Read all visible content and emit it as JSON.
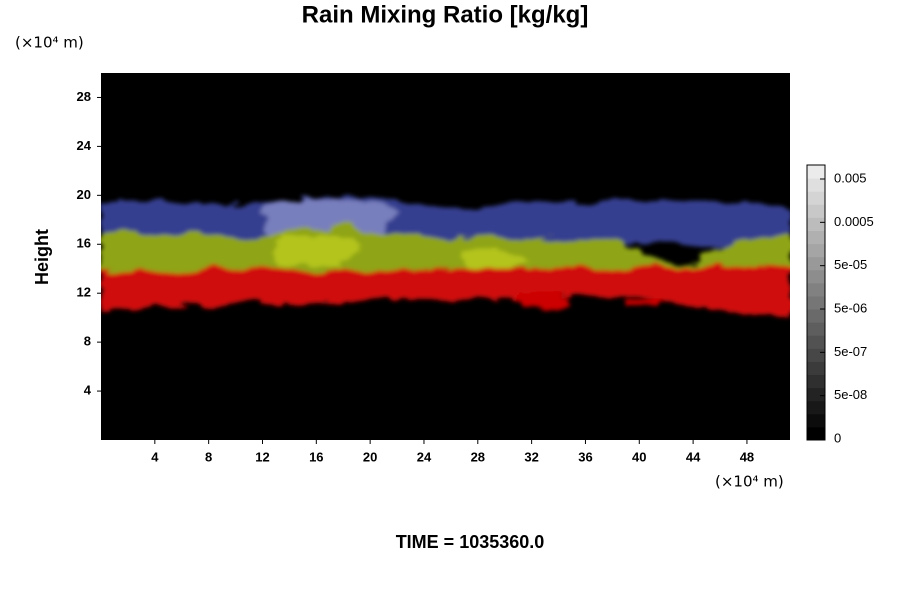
{
  "chart_data": {
    "type": "heatmap",
    "title": "Rain Mixing Ratio [kg/kg]",
    "y_label": "Height",
    "y_unit": "(×10⁴ m)",
    "x_unit": "(×10⁴ m)",
    "footer": "TIME = 1035360.0",
    "xlim": [
      0,
      51.2
    ],
    "xticks": [
      4,
      8,
      12,
      16,
      20,
      24,
      28,
      32,
      36,
      40,
      44,
      48
    ],
    "ylim": [
      0,
      30
    ],
    "yticks": [
      4,
      8,
      12,
      16,
      20,
      24,
      28
    ],
    "colorbar_ticks": [
      {
        "value": 0,
        "label": "0"
      },
      {
        "value": 5e-08,
        "label": "5e-08"
      },
      {
        "value": 5e-07,
        "label": "5e-07"
      },
      {
        "value": 5e-06,
        "label": "5e-06"
      },
      {
        "value": 5e-05,
        "label": "5e-05"
      },
      {
        "value": 0.0005,
        "label": "0.0005"
      },
      {
        "value": 0.005,
        "label": "0.005"
      }
    ]
  }
}
